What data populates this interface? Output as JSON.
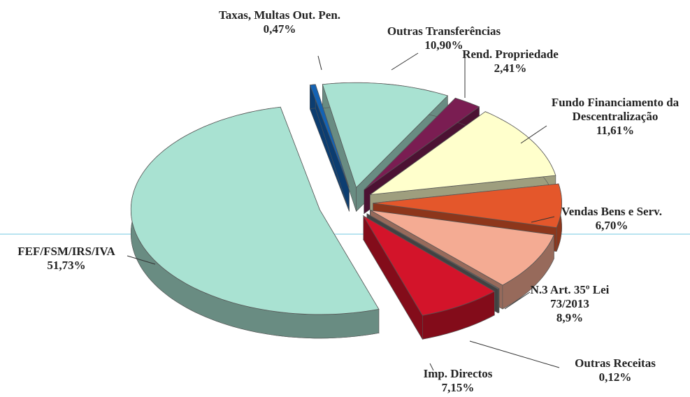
{
  "chart_data": {
    "type": "pie",
    "categories": [
      "Taxas, Multas Out. Pen.",
      "Outras Transferências",
      "Rend. Propriedade",
      "Fundo Financiamento da Descentralização",
      "Vendas Bens e Serv.",
      "N.3 Art. 35º Lei 73/2013",
      "Outras Receitas",
      "Imp. Directos",
      "FEF/FSM/IRS/IVA"
    ],
    "values": [
      0.47,
      10.9,
      2.41,
      11.61,
      6.7,
      8.9,
      0.12,
      7.15,
      51.73
    ],
    "value_labels": [
      "0,47%",
      "10,90%",
      "2,41%",
      "11,61%",
      "6,70%",
      "8,9%",
      "0,12%",
      "7,15%",
      "51,73%"
    ],
    "colors": [
      "#1463b4",
      "#a9e2d2",
      "#7a1d52",
      "#ffffcc",
      "#e4572b",
      "#f4ab93",
      "#6a6a6a",
      "#d3142a",
      "#a9e2d2"
    ]
  }
}
